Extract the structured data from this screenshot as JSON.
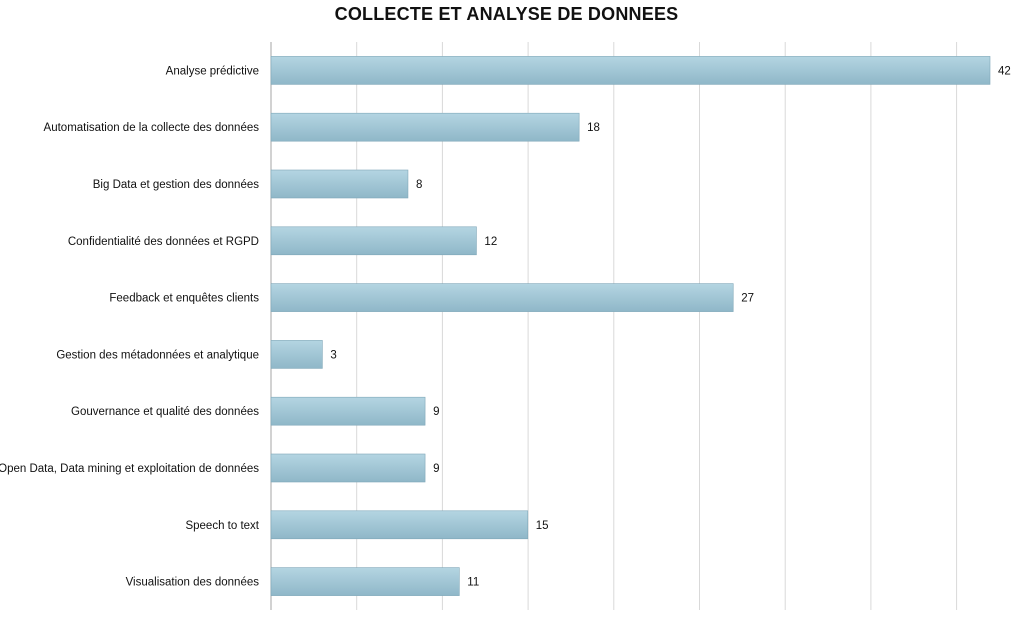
{
  "chart_data": {
    "type": "bar",
    "orientation": "horizontal",
    "title": "COLLECTE ET ANALYSE DE DONNEES",
    "xlabel": "",
    "ylabel": "",
    "xlim": [
      0,
      42
    ],
    "grid": true,
    "legend": "none",
    "categories": [
      "Analyse prédictive",
      "Automatisation de la collecte des données",
      "Big Data et gestion des données",
      "Confidentialité des données et RGPD",
      "Feedback et enquêtes clients",
      "Gestion des métadonnées et analytique",
      "Gouvernance et qualité des données",
      "Open Data, Data mining et exploitation de données",
      "Speech to text",
      "Visualisation des données"
    ],
    "values": [
      42,
      18,
      8,
      12,
      27,
      3,
      9,
      9,
      15,
      11
    ],
    "data_labels": [
      "42",
      "18",
      "8",
      "12",
      "27",
      "3",
      "9",
      "9",
      "15",
      "11"
    ],
    "colors": {
      "bar_top": "#b4d5e2",
      "bar_bottom": "#8fb7c8",
      "bar_edge": "#7fa7b8",
      "grid": "#d9d9d9",
      "axis": "#a6a6a6"
    }
  }
}
